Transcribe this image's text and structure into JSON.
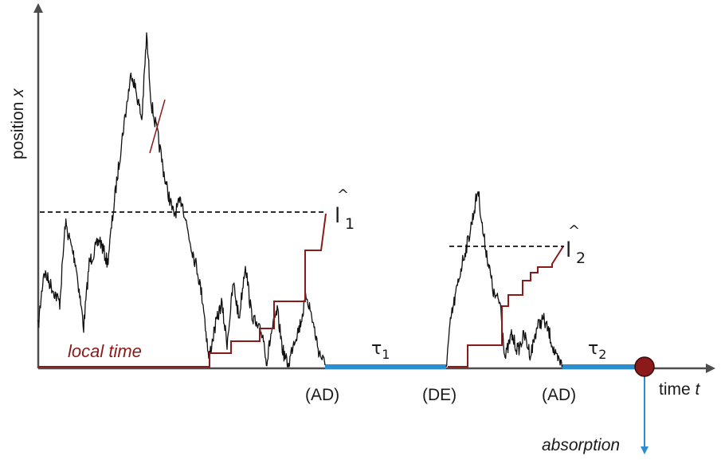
{
  "axes": {
    "y_label": "position x",
    "y_label_text": "position ",
    "y_label_var": "x",
    "x_label_text": "time ",
    "x_label_var": "t"
  },
  "curves": {
    "local_time_label": "local time"
  },
  "thresholds": {
    "l1_letter": "l",
    "l1_sub": "1",
    "l2_letter": "l",
    "l2_sub": "2",
    "hat": "^"
  },
  "intervals": {
    "tau1_letter": "τ",
    "tau1_sub": "1",
    "tau2_letter": "τ",
    "tau2_sub": "2"
  },
  "events": {
    "ad1": "(AD)",
    "de": "(DE)",
    "ad2": "(AD)",
    "absorption": "absorption"
  },
  "colors": {
    "axis": "#4d4d4d",
    "trajectory": "#111111",
    "local_time": "#8b1a1a",
    "interval": "#2b8fcf",
    "absorption_dot": "#8b1a1a",
    "absorption_arrow": "#2b8fcf"
  }
}
